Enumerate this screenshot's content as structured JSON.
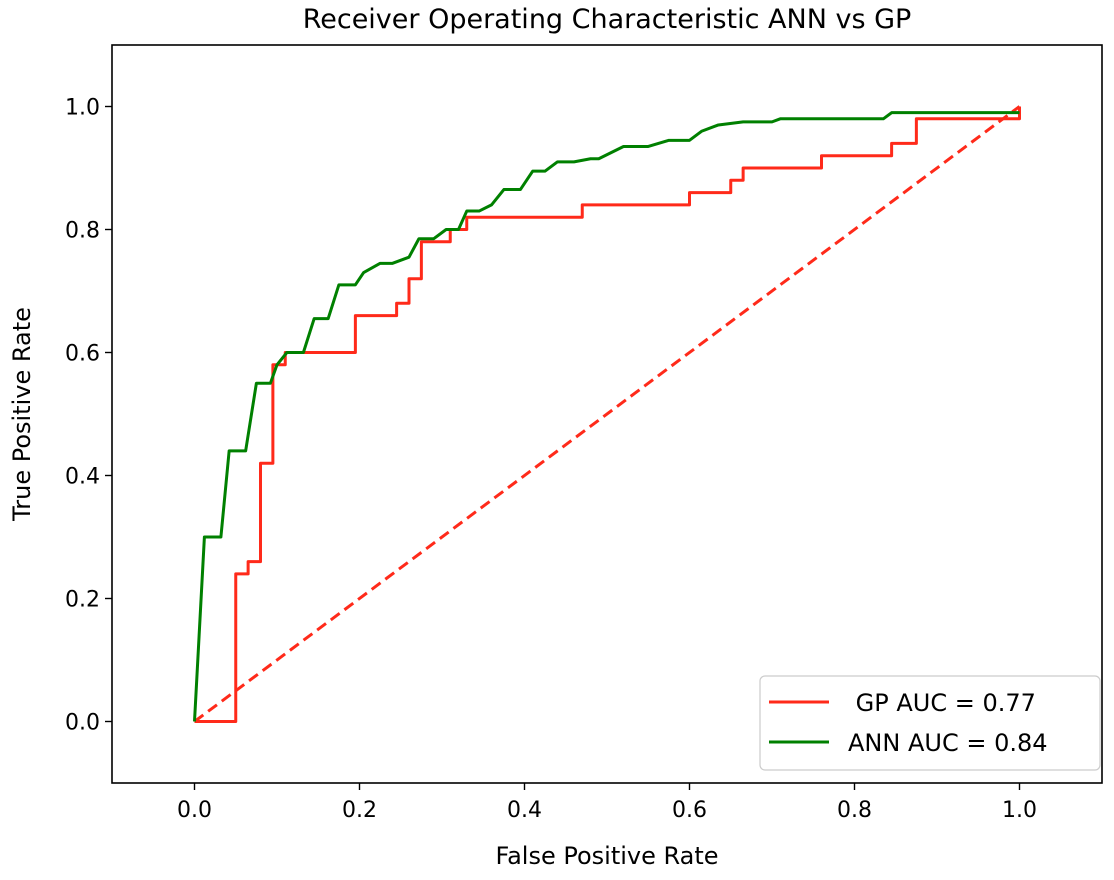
{
  "chart_data": {
    "type": "line",
    "title": "Receiver Operating Characteristic ANN vs GP",
    "xlabel": "False Positive Rate",
    "ylabel": "True Positive Rate",
    "xlim": [
      -0.1,
      1.1
    ],
    "ylim": [
      -0.1,
      1.1
    ],
    "xticks": [
      "0.0",
      "0.2",
      "0.4",
      "0.6",
      "0.8",
      "1.0"
    ],
    "yticks": [
      "0.0",
      "0.2",
      "0.4",
      "0.6",
      "0.8",
      "1.0"
    ],
    "xtick_values": [
      0.0,
      0.2,
      0.4,
      0.6,
      0.8,
      1.0
    ],
    "ytick_values": [
      0.0,
      0.2,
      0.4,
      0.6,
      0.8,
      1.0
    ],
    "grid": false,
    "legend_position": "bottom-right",
    "diagonal": {
      "x": [
        0,
        1
      ],
      "y": [
        0,
        1
      ],
      "color": "#ff2a1a",
      "style": "dashed"
    },
    "series": [
      {
        "name": " GP AUC = 0.77",
        "color": "#ff2a1a",
        "x": [
          0.0,
          0.05,
          0.05,
          0.065,
          0.065,
          0.08,
          0.08,
          0.095,
          0.095,
          0.11,
          0.11,
          0.195,
          0.195,
          0.245,
          0.245,
          0.26,
          0.26,
          0.275,
          0.275,
          0.31,
          0.31,
          0.33,
          0.33,
          0.47,
          0.47,
          0.6,
          0.6,
          0.65,
          0.65,
          0.665,
          0.665,
          0.76,
          0.76,
          0.845,
          0.845,
          0.875,
          0.875,
          1.0,
          1.0
        ],
        "y": [
          0.0,
          0.0,
          0.24,
          0.24,
          0.26,
          0.26,
          0.42,
          0.42,
          0.58,
          0.58,
          0.6,
          0.6,
          0.66,
          0.66,
          0.68,
          0.68,
          0.72,
          0.72,
          0.78,
          0.78,
          0.8,
          0.8,
          0.82,
          0.82,
          0.84,
          0.84,
          0.86,
          0.86,
          0.88,
          0.88,
          0.9,
          0.9,
          0.92,
          0.92,
          0.94,
          0.94,
          0.98,
          0.98,
          1.0
        ]
      },
      {
        "name": "ANN AUC = 0.84",
        "color": "#008000",
        "x": [
          0.0,
          0.012,
          0.032,
          0.042,
          0.062,
          0.075,
          0.092,
          0.1,
          0.112,
          0.132,
          0.145,
          0.162,
          0.175,
          0.195,
          0.205,
          0.225,
          0.24,
          0.26,
          0.272,
          0.29,
          0.305,
          0.32,
          0.33,
          0.345,
          0.36,
          0.375,
          0.395,
          0.41,
          0.425,
          0.44,
          0.46,
          0.48,
          0.49,
          0.505,
          0.52,
          0.55,
          0.575,
          0.6,
          0.615,
          0.635,
          0.665,
          0.7,
          0.71,
          0.76,
          0.835,
          0.845,
          1.0
        ],
        "y": [
          0.0,
          0.3,
          0.3,
          0.44,
          0.44,
          0.55,
          0.55,
          0.58,
          0.6,
          0.6,
          0.655,
          0.655,
          0.71,
          0.71,
          0.73,
          0.745,
          0.745,
          0.755,
          0.785,
          0.785,
          0.8,
          0.8,
          0.83,
          0.83,
          0.84,
          0.865,
          0.865,
          0.895,
          0.895,
          0.91,
          0.91,
          0.915,
          0.915,
          0.925,
          0.935,
          0.935,
          0.945,
          0.945,
          0.96,
          0.97,
          0.975,
          0.975,
          0.98,
          0.98,
          0.98,
          0.99,
          0.99
        ]
      }
    ]
  }
}
